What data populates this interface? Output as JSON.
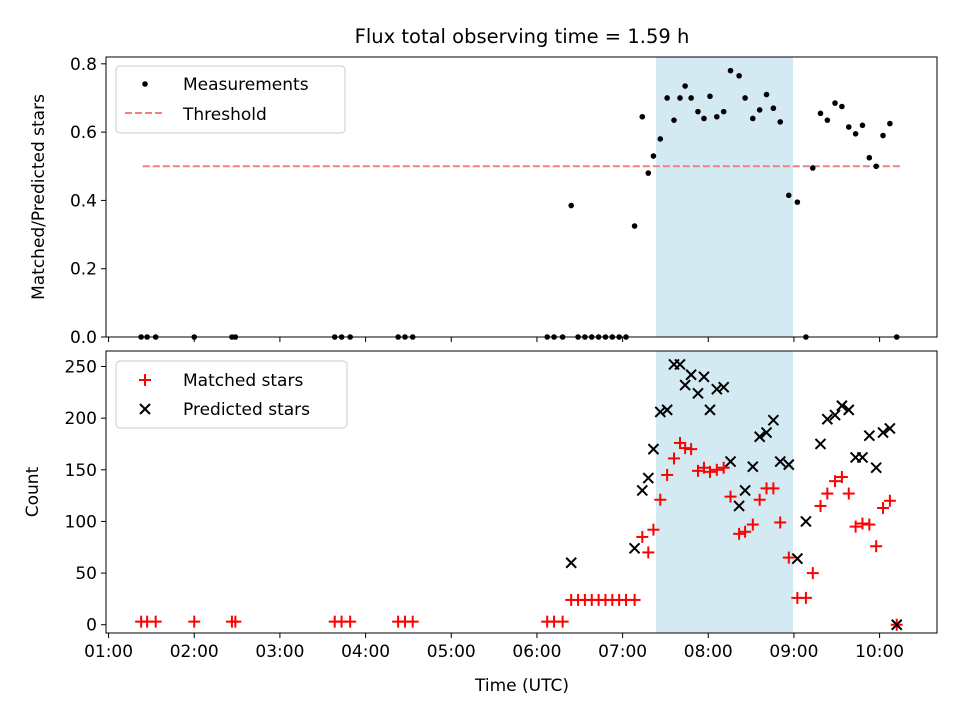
{
  "figure_title": "Flux total observing time = 1.59 h",
  "colors": {
    "measurement": "#000000",
    "threshold": "#f08080",
    "matched": "#ff0000",
    "predicted": "#000000",
    "shade": "#add8e6"
  },
  "chart_data": [
    {
      "type": "scatter",
      "panel": "top",
      "title": "Flux total observing time = 1.59 h",
      "xlabel": "",
      "ylabel": "Matched/Predicted stars",
      "xlim": [
        0.97,
        10.67
      ],
      "ylim": [
        0,
        0.82
      ],
      "yticks": [
        0,
        0.2,
        0.4,
        0.6,
        0.8
      ],
      "ytick_labels": [
        "0.0",
        "0.2",
        "0.4",
        "0.6",
        "0.8"
      ],
      "shaded_span": [
        7.39,
        8.99
      ],
      "legend_position": "upper-left",
      "legend": [
        "Measurements",
        "Threshold"
      ],
      "threshold": {
        "name": "Threshold",
        "value": 0.5,
        "x_range": [
          1.4,
          10.25
        ]
      },
      "series": [
        {
          "name": "Measurements",
          "x": [
            1.38,
            1.45,
            1.55,
            2.0,
            2.44,
            2.48,
            3.64,
            3.72,
            3.82,
            4.38,
            4.46,
            4.55,
            6.12,
            6.2,
            6.3,
            6.4,
            6.48,
            6.56,
            6.64,
            6.72,
            6.8,
            6.88,
            6.96,
            7.04,
            7.14,
            7.23,
            7.3,
            7.36,
            7.44,
            7.52,
            7.6,
            7.67,
            7.73,
            7.8,
            7.88,
            7.95,
            8.02,
            8.1,
            8.18,
            8.26,
            8.36,
            8.43,
            8.52,
            8.6,
            8.68,
            8.76,
            8.84,
            8.94,
            9.04,
            9.14,
            9.22,
            9.31,
            9.39,
            9.48,
            9.56,
            9.64,
            9.72,
            9.8,
            9.88,
            9.96,
            10.04,
            10.12,
            10.2
          ],
          "y": [
            0,
            0,
            0,
            0,
            0,
            0,
            0,
            0,
            0,
            0,
            0,
            0,
            0,
            0,
            0,
            0.385,
            0,
            0,
            0,
            0,
            0,
            0,
            0,
            0,
            0.325,
            0.645,
            0.48,
            0.53,
            0.58,
            0.7,
            0.635,
            0.7,
            0.735,
            0.7,
            0.66,
            0.64,
            0.705,
            0.645,
            0.66,
            0.78,
            0.765,
            0.7,
            0.64,
            0.665,
            0.71,
            0.67,
            0.63,
            0.415,
            0.395,
            0,
            0.495,
            0.655,
            0.635,
            0.685,
            0.675,
            0.615,
            0.595,
            0.62,
            0.525,
            0.5,
            0.59,
            0.625,
            0.0
          ]
        }
      ]
    },
    {
      "type": "scatter",
      "panel": "bottom",
      "xlabel": "Time (UTC)",
      "ylabel": "Count",
      "xlim": [
        0.97,
        10.67
      ],
      "ylim": [
        -8,
        265
      ],
      "yticks": [
        0,
        50,
        100,
        150,
        200,
        250
      ],
      "ytick_labels": [
        "0",
        "50",
        "100",
        "150",
        "200",
        "250"
      ],
      "xticks": [
        1,
        2,
        3,
        4,
        5,
        6,
        7,
        8,
        9,
        10
      ],
      "xtick_labels": [
        "01:00",
        "02:00",
        "03:00",
        "04:00",
        "05:00",
        "06:00",
        "07:00",
        "08:00",
        "09:00",
        "10:00"
      ],
      "shaded_span": [
        7.39,
        8.99
      ],
      "legend_position": "upper-left",
      "legend": [
        "Matched stars",
        "Predicted stars"
      ],
      "series": [
        {
          "name": "Matched stars",
          "x": [
            1.38,
            1.45,
            1.55,
            2.0,
            2.44,
            2.48,
            3.64,
            3.72,
            3.82,
            4.38,
            4.46,
            4.55,
            6.12,
            6.2,
            6.3,
            6.4,
            6.48,
            6.56,
            6.64,
            6.72,
            6.8,
            6.88,
            6.96,
            7.04,
            7.14,
            7.23,
            7.3,
            7.36,
            7.44,
            7.52,
            7.6,
            7.67,
            7.73,
            7.8,
            7.88,
            7.95,
            8.02,
            8.1,
            8.18,
            8.26,
            8.36,
            8.43,
            8.52,
            8.6,
            8.68,
            8.76,
            8.84,
            8.94,
            9.04,
            9.14,
            9.22,
            9.31,
            9.39,
            9.48,
            9.56,
            9.64,
            9.72,
            9.8,
            9.88,
            9.96,
            10.04,
            10.12,
            10.2
          ],
          "y": [
            3,
            3,
            3,
            3,
            3,
            3,
            3,
            3,
            3,
            3,
            3,
            3,
            3,
            3,
            3,
            24,
            24,
            24,
            24,
            24,
            24,
            24,
            24,
            24,
            24,
            85,
            70,
            92,
            121,
            145,
            161,
            176,
            171,
            170,
            149,
            152,
            148,
            150,
            152,
            124,
            88,
            90,
            97,
            121,
            132,
            132,
            99,
            65,
            26,
            26,
            50,
            115,
            127,
            139,
            143,
            127,
            95,
            98,
            97,
            76,
            113,
            120,
            0
          ],
          "marker": "plus"
        },
        {
          "name": "Predicted stars",
          "x": [
            6.4,
            7.14,
            7.23,
            7.3,
            7.36,
            7.44,
            7.52,
            7.6,
            7.67,
            7.73,
            7.8,
            7.88,
            7.95,
            8.02,
            8.1,
            8.18,
            8.26,
            8.36,
            8.43,
            8.52,
            8.6,
            8.68,
            8.76,
            8.84,
            8.94,
            9.04,
            9.14,
            9.31,
            9.39,
            9.48,
            9.56,
            9.64,
            9.72,
            9.8,
            9.88,
            9.96,
            10.04,
            10.12,
            10.2
          ],
          "y": [
            60,
            74,
            130,
            142,
            170,
            206,
            208,
            252,
            252,
            232,
            242,
            224,
            240,
            208,
            228,
            230,
            158,
            115,
            130,
            153,
            182,
            186,
            198,
            158,
            155,
            64,
            100,
            175,
            199,
            203,
            212,
            208,
            162,
            162,
            183,
            152,
            186,
            190,
            0
          ],
          "marker": "x"
        }
      ]
    }
  ]
}
